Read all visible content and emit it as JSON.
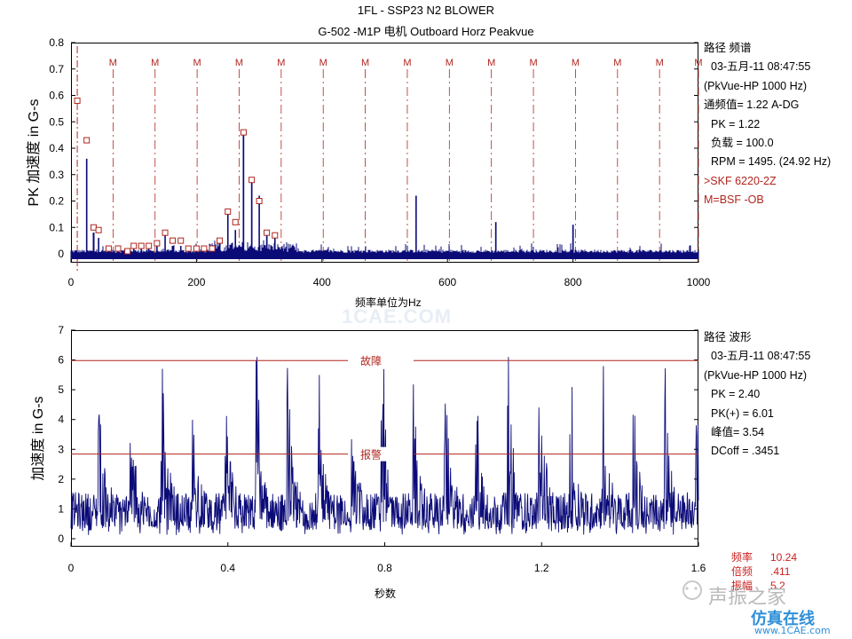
{
  "header": {
    "title_line1": "1FL - SSP23 N2 BLOWER",
    "title_line2": "G-502     -M1P   电机 Outboard Horz Peakvue"
  },
  "chart_data": [
    {
      "type": "line",
      "name": "spectrum",
      "ylabel": "PK 加速度 in G-s",
      "xlabel": "频率单位为Hz",
      "xlim": [
        0,
        1000
      ],
      "ylim": [
        0,
        0.8
      ],
      "x_ticks": [
        "0",
        "200",
        "400",
        "600",
        "800",
        "1000"
      ],
      "y_ticks": [
        "0",
        "0.1",
        "0.2",
        "0.3",
        "0.4",
        "0.5",
        "0.6",
        "0.7",
        "0.8"
      ],
      "marker_label": "M",
      "marker_x": [
        67,
        134,
        201,
        268,
        335,
        402,
        469,
        536,
        603,
        670,
        737,
        804,
        871,
        938,
        1000
      ],
      "peaks": [
        {
          "x": 25,
          "y": 0.36
        },
        {
          "x": 36,
          "y": 0.08
        },
        {
          "x": 44,
          "y": 0.06
        },
        {
          "x": 60,
          "y": 0.02
        },
        {
          "x": 75,
          "y": 0.02
        },
        {
          "x": 90,
          "y": 0.01
        },
        {
          "x": 100,
          "y": 0.03
        },
        {
          "x": 112,
          "y": 0.03
        },
        {
          "x": 124,
          "y": 0.03
        },
        {
          "x": 137,
          "y": 0.04
        },
        {
          "x": 150,
          "y": 0.08
        },
        {
          "x": 162,
          "y": 0.03
        },
        {
          "x": 175,
          "y": 0.03
        },
        {
          "x": 187,
          "y": 0.02
        },
        {
          "x": 200,
          "y": 0.02
        },
        {
          "x": 212,
          "y": 0.02
        },
        {
          "x": 225,
          "y": 0.02
        },
        {
          "x": 237,
          "y": 0.05
        },
        {
          "x": 250,
          "y": 0.15
        },
        {
          "x": 262,
          "y": 0.09
        },
        {
          "x": 275,
          "y": 0.45
        },
        {
          "x": 288,
          "y": 0.28
        },
        {
          "x": 300,
          "y": 0.22
        },
        {
          "x": 312,
          "y": 0.08
        },
        {
          "x": 325,
          "y": 0.06
        },
        {
          "x": 337,
          "y": 0.02
        },
        {
          "x": 550,
          "y": 0.22
        },
        {
          "x": 677,
          "y": 0.12
        },
        {
          "x": 800,
          "y": 0.11
        }
      ],
      "circled_peaks_x": [
        10,
        25,
        36,
        44,
        60,
        75,
        90,
        100,
        112,
        124,
        137,
        150,
        162,
        175,
        187,
        200,
        212,
        225,
        237,
        250,
        262,
        275,
        288,
        300,
        312,
        325
      ],
      "circled_peaks_y": [
        0.58,
        0.43,
        0.1,
        0.09,
        0.02,
        0.02,
        0.01,
        0.03,
        0.03,
        0.03,
        0.04,
        0.08,
        0.05,
        0.05,
        0.02,
        0.02,
        0.02,
        0.02,
        0.05,
        0.16,
        0.12,
        0.46,
        0.28,
        0.2,
        0.08,
        0.07
      ]
    },
    {
      "type": "line",
      "name": "waveform",
      "ylabel": "加速度 in G-s",
      "xlabel": "秒数",
      "xlim": [
        0,
        1.6
      ],
      "ylim": [
        0,
        7
      ],
      "x_ticks": [
        "0",
        "0.4",
        "0.8",
        "1.2",
        "1.6"
      ],
      "y_ticks": [
        "0",
        "1",
        "2",
        "3",
        "4",
        "5",
        "6",
        "7"
      ],
      "fault_level": 5.98,
      "alarm_level": 2.84,
      "fault_label": "故障",
      "alarm_label": "报警",
      "impact_period": 0.0802,
      "impact_start": 0.073,
      "impact_peaks": [
        4.4,
        3.8,
        5.0,
        3.5,
        4.6,
        5.5,
        4.2,
        4.8,
        3.9,
        5.1,
        4.3,
        4.6,
        4.1,
        5.2,
        5.9,
        4.2,
        4.9,
        4.0,
        5.0,
        4.6,
        5.7
      ]
    }
  ],
  "spectrum_info": {
    "line1": "路径 频谱",
    "line2": "03-五月-11 08:47:55",
    "line3": "(PkVue-HP 1000 Hz)",
    "line4": "通频值= 1.22 A-DG",
    "line5": "PK  =  1.22",
    "line6": "负载 = 100.0",
    "line7": "RPM = 1495. (24.92 Hz)",
    "line8": ">SKF 6220-2Z",
    "line9": "M=BSF  -OB"
  },
  "waveform_info": {
    "line1": "路径 波形",
    "line2": "03-五月-11 08:47:55",
    "line3": "(PkVue-HP 1000 Hz)",
    "line4": "PK  =  2.40",
    "line5": "PK(+) = 6.01",
    "line6": "峰值= 3.54",
    "line7": "DCoff = .3451"
  },
  "bottom_info": {
    "k1": "频率",
    "v1": "10.24",
    "k2": "倍频",
    "v2": ".411",
    "k3": "振幅",
    "v3": "5.2"
  },
  "watermark": {
    "center": "1CAE.COM",
    "title": "声振之家",
    "sub": "仿真在线",
    "url": "www.1CAE.com"
  },
  "colors": {
    "trace": "#0b0b78",
    "marker": "#b0261e",
    "axis": "#000000"
  }
}
